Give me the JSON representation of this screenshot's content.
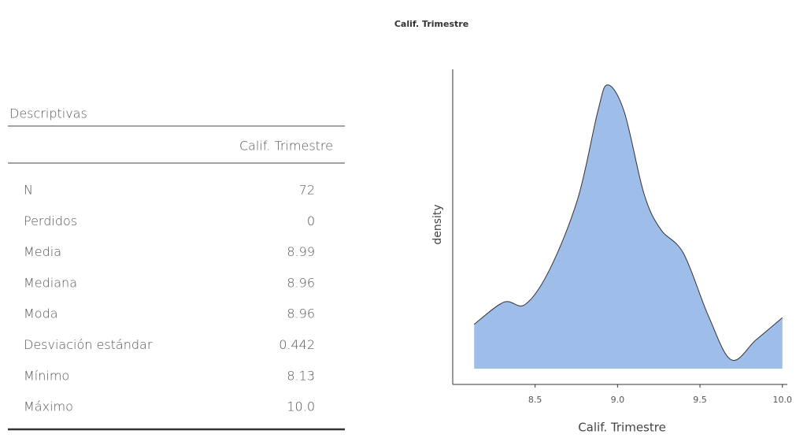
{
  "table": {
    "title": "Descriptivas",
    "header": "Calif. Trimestre",
    "rows": [
      [
        "N",
        "72"
      ],
      [
        "Perdidos",
        "0"
      ],
      [
        "Media",
        "8.99"
      ],
      [
        "Mediana",
        "8.96"
      ],
      [
        "Moda",
        "8.96"
      ],
      [
        "Desviación estándar",
        "0.442"
      ],
      [
        "Mínimo",
        "8.13"
      ],
      [
        "Máximo",
        "10.0"
      ]
    ]
  },
  "chart_data": {
    "type": "area",
    "title": "Calif. Trimestre",
    "x_label": "Calif. Trimestre",
    "y_label": "density",
    "x": [
      8.13,
      8.31,
      8.44,
      8.59,
      8.76,
      8.88,
      8.94,
      9.04,
      9.16,
      9.26,
      9.4,
      9.55,
      9.69,
      9.84,
      10.0
    ],
    "values": [
      0.2,
      0.3,
      0.29,
      0.45,
      0.77,
      1.16,
      1.28,
      1.16,
      0.79,
      0.63,
      0.52,
      0.24,
      0.04,
      0.13,
      0.23
    ],
    "color": "#9fbde9",
    "line_color": "#333333",
    "xlim": [
      8.0,
      10.03
    ],
    "ylim": [
      0,
      1.35
    ],
    "xticks": [
      8.5,
      {
        "value": 9.0,
        "label": "9.0"
      },
      9.5,
      {
        "value": 10.0,
        "label": "10.0"
      }
    ]
  }
}
